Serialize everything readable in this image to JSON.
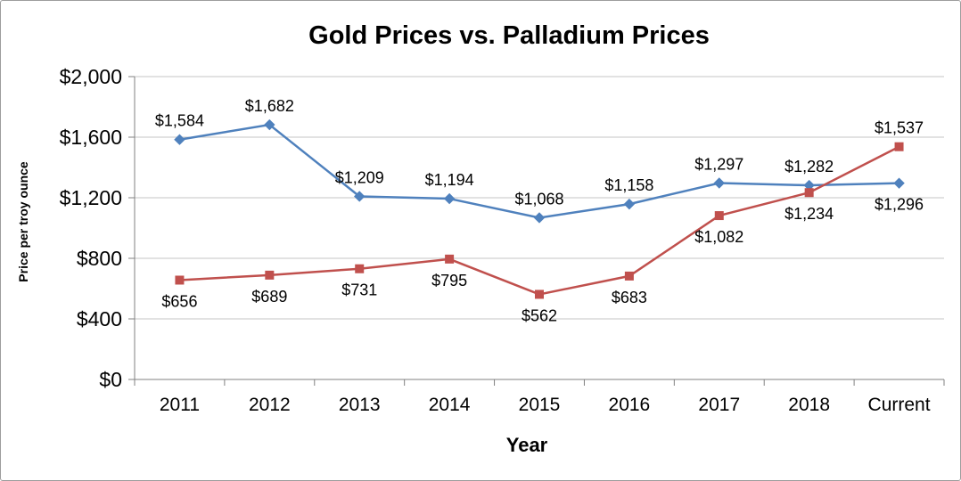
{
  "chart_data": {
    "type": "line",
    "title": "Gold Prices vs. Palladium Prices",
    "xlabel": "Year",
    "ylabel": "Price per troy ounce",
    "categories": [
      "2011",
      "2012",
      "2013",
      "2014",
      "2015",
      "2016",
      "2017",
      "2018",
      "Current"
    ],
    "series": [
      {
        "name": "Gold",
        "color": "#4F81BD",
        "marker": "diamond",
        "values": [
          1584,
          1682,
          1209,
          1194,
          1068,
          1158,
          1297,
          1282,
          1296
        ],
        "labels": [
          "$1,584",
          "$1,682",
          "$1,209",
          "$1,194",
          "$1,068",
          "$1,158",
          "$1,297",
          "$1,282",
          "$1,296"
        ],
        "label_positions": [
          "above",
          "above",
          "above",
          "above",
          "above",
          "above",
          "above",
          "above",
          "below"
        ]
      },
      {
        "name": "Palladium",
        "color": "#C0504D",
        "marker": "square",
        "values": [
          656,
          689,
          731,
          795,
          562,
          683,
          1082,
          1234,
          1537
        ],
        "labels": [
          "$656",
          "$689",
          "$731",
          "$795",
          "$562",
          "$683",
          "$1,082",
          "$1,234",
          "$1,537"
        ],
        "label_positions": [
          "below",
          "below",
          "below",
          "below",
          "below",
          "below",
          "below",
          "below",
          "above"
        ]
      }
    ],
    "ylim": [
      0,
      2000
    ],
    "ytick_step": 400,
    "ytick_labels": [
      "$0",
      "$400",
      "$800",
      "$1,200",
      "$1,600",
      "$2,000"
    ],
    "grid": true,
    "legend": "none"
  }
}
